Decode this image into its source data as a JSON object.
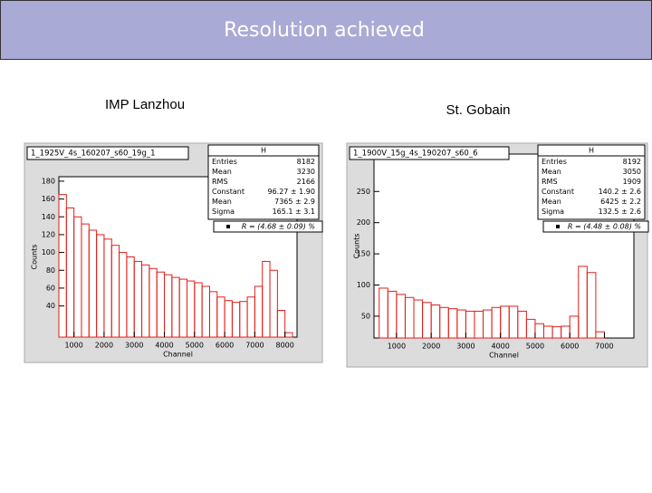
{
  "title": "Resolution achieved",
  "chart_data": [
    {
      "type": "histogram",
      "caption": "IMP Lanzhou",
      "title": "1_1925V_4s_160207_s60_19g_1",
      "stats_title": "H",
      "stats": [
        [
          "Entries",
          "8182"
        ],
        [
          "Mean",
          "3230"
        ],
        [
          "RMS",
          "2166"
        ],
        [
          "Constant",
          "96.27 ± 1.90"
        ],
        [
          "Mean",
          "7365 ± 2.9"
        ],
        [
          "Sigma",
          "165.1 ± 3.1"
        ]
      ],
      "fit_label": "R = (4.68 ± 0.09) %",
      "x_label": "Channel",
      "y_label": "Counts",
      "color": "#e0201a",
      "xlim": [
        500,
        8400
      ],
      "ylim": [
        5,
        185
      ],
      "xticks": [
        1000,
        2000,
        3000,
        4000,
        5000,
        6000,
        7000,
        8000
      ],
      "yticks": [
        40,
        60,
        80,
        100,
        120,
        140,
        160,
        180
      ],
      "bins": [
        500,
        750,
        1000,
        1250,
        1500,
        1750,
        2000,
        2250,
        2500,
        2750,
        3000,
        3250,
        3500,
        3750,
        4000,
        4250,
        4500,
        4750,
        5000,
        5250,
        5500,
        5750,
        6000,
        6250,
        6500,
        6750,
        7000,
        7250,
        7500,
        7750,
        8000,
        8250
      ],
      "values": [
        165,
        150,
        140,
        132,
        125,
        120,
        115,
        108,
        100,
        95,
        90,
        86,
        82,
        78,
        75,
        72,
        70,
        68,
        66,
        62,
        56,
        50,
        46,
        44,
        45,
        50,
        62,
        90,
        80,
        35,
        10
      ]
    },
    {
      "type": "histogram",
      "caption": "St. Gobain",
      "title": "1_1900V_15g_4s_190207_s60_6",
      "stats_title": "H",
      "stats": [
        [
          "Entries",
          "8192"
        ],
        [
          "Mean",
          "3050"
        ],
        [
          "RMS",
          "1909"
        ],
        [
          "Constant",
          "140.2 ± 2.6"
        ],
        [
          "Mean",
          "6425 ± 2.2"
        ],
        [
          "Sigma",
          "132.5 ± 2.6"
        ]
      ],
      "fit_label": "R = (4.48 ± 0.08) %",
      "x_label": "Channel",
      "y_label": "Counts",
      "color": "#e0201a",
      "xlim": [
        350,
        7850
      ],
      "ylim": [
        15,
        310
      ],
      "xticks": [
        1000,
        2000,
        3000,
        4000,
        5000,
        6000,
        7000
      ],
      "yticks": [
        50,
        100,
        150,
        200,
        250
      ],
      "bins": [
        500,
        750,
        1000,
        1250,
        1500,
        1750,
        2000,
        2250,
        2500,
        2750,
        3000,
        3250,
        3500,
        3750,
        4000,
        4250,
        4500,
        4750,
        5000,
        5250,
        5500,
        5750,
        6000,
        6250,
        6500,
        6750,
        7000
      ],
      "values": [
        95,
        90,
        85,
        80,
        76,
        72,
        68,
        64,
        62,
        60,
        58,
        58,
        60,
        64,
        66,
        66,
        58,
        45,
        38,
        34,
        33,
        34,
        50,
        130,
        120,
        25
      ]
    }
  ]
}
